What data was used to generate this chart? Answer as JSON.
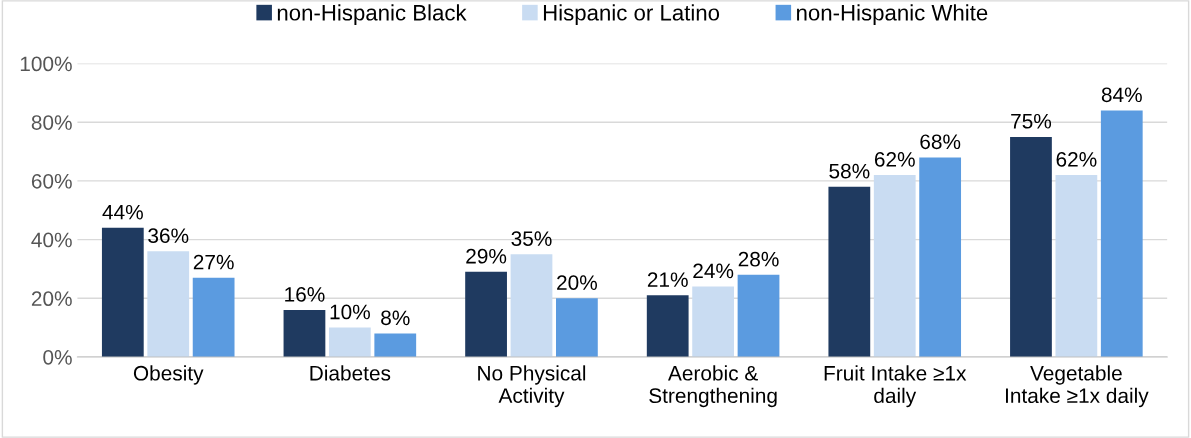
{
  "chart_data": {
    "type": "bar",
    "categories": [
      "Obesity",
      "Diabetes",
      "No Physical\nActivity",
      "Aerobic &\nStrengthening",
      "Fruit Intake ≥1x\ndaily",
      "Vegetable\nIntake ≥1x daily"
    ],
    "series": [
      {
        "name": "non-Hispanic Black",
        "color": "#1f3a60",
        "values": [
          44,
          16,
          29,
          21,
          58,
          75
        ],
        "value_labels": [
          "44%",
          "16%",
          "29%",
          "21%",
          "58%",
          "75%"
        ]
      },
      {
        "name": "Hispanic or Latino",
        "color": "#c9dcf2",
        "values": [
          36,
          10,
          35,
          24,
          62,
          62
        ],
        "value_labels": [
          "36%",
          "10%",
          "35%",
          "24%",
          "62%",
          "62%"
        ]
      },
      {
        "name": "non-Hispanic White",
        "color": "#5b9be0",
        "values": [
          27,
          8,
          20,
          28,
          68,
          84
        ],
        "value_labels": [
          "27%",
          "8%",
          "20%",
          "28%",
          "68%",
          "84%"
        ]
      }
    ],
    "ylim": [
      0,
      100
    ],
    "yticks": [
      {
        "value": 0,
        "label": "0%"
      },
      {
        "value": 20,
        "label": "20%"
      },
      {
        "value": 40,
        "label": "40%"
      },
      {
        "value": 60,
        "label": "60%"
      },
      {
        "value": 80,
        "label": "80%"
      },
      {
        "value": 100,
        "label": "100%"
      }
    ],
    "grid": "y",
    "legend": "top"
  }
}
